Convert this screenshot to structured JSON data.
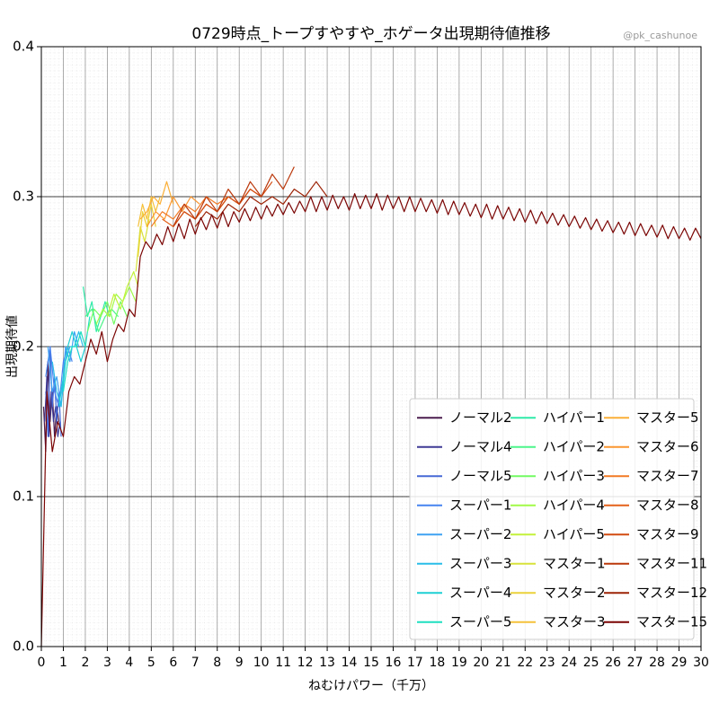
{
  "chart_data": {
    "type": "line",
    "title": "0729時点_トープすやすや_ホゲータ出現期待値推移",
    "watermark": "@pk_cashunoe",
    "xlabel": "ねむけパワー（千万）",
    "ylabel": "出現期待値",
    "xlim": [
      0,
      30
    ],
    "ylim": [
      0,
      0.4
    ],
    "xticks": [
      0,
      1,
      2,
      3,
      4,
      5,
      6,
      7,
      8,
      9,
      10,
      11,
      12,
      13,
      14,
      15,
      16,
      17,
      18,
      19,
      20,
      21,
      22,
      23,
      24,
      25,
      26,
      27,
      28,
      29,
      30
    ],
    "yticks": [
      {
        "value": 0,
        "label": "0.0"
      },
      0.1,
      0.2,
      0.3,
      0.4
    ],
    "grid": true,
    "legend": "lower right",
    "series": [
      {
        "name": "ノーマル2",
        "color": "#4b1d4f",
        "x": [
          0.1,
          0.2,
          0.3,
          0.4,
          0.5,
          0.6,
          0.7,
          0.8
        ],
        "values": [
          0.16,
          0.13,
          0.19,
          0.15,
          0.17,
          0.14,
          0.16,
          0.15
        ]
      },
      {
        "name": "ノーマル4",
        "color": "#3f3a95",
        "x": [
          0.15,
          0.25,
          0.35,
          0.45,
          0.55,
          0.65,
          0.75,
          0.85
        ],
        "values": [
          0.15,
          0.18,
          0.14,
          0.17,
          0.15,
          0.16,
          0.14,
          0.15
        ]
      },
      {
        "name": "ノーマル5",
        "color": "#4668d6",
        "x": [
          0.2,
          0.3,
          0.4,
          0.5,
          0.6,
          0.7,
          0.8,
          0.9
        ],
        "values": [
          0.17,
          0.14,
          0.2,
          0.16,
          0.18,
          0.15,
          0.17,
          0.14
        ]
      },
      {
        "name": "スーパー1",
        "color": "#4684f0",
        "x": [
          0.2,
          0.4,
          0.6,
          0.8,
          1.0,
          1.2,
          1.4
        ],
        "values": [
          0.18,
          0.2,
          0.17,
          0.16,
          0.19,
          0.2,
          0.19
        ]
      },
      {
        "name": "スーパー2",
        "color": "#3ea2f2",
        "x": [
          0.3,
          0.5,
          0.7,
          0.9,
          1.1,
          1.3,
          1.5,
          1.7
        ],
        "values": [
          0.2,
          0.17,
          0.18,
          0.16,
          0.2,
          0.19,
          0.21,
          0.2
        ]
      },
      {
        "name": "スーパー3",
        "color": "#29bde8",
        "x": [
          0.5,
          0.7,
          0.9,
          1.1,
          1.3,
          1.5,
          1.7,
          1.9
        ],
        "values": [
          0.19,
          0.17,
          0.16,
          0.19,
          0.2,
          0.2,
          0.21,
          0.2
        ]
      },
      {
        "name": "スーパー4",
        "color": "#1dcfd4",
        "x": [
          0.8,
          1.0,
          1.2,
          1.4,
          1.6,
          1.8,
          2.0
        ],
        "values": [
          0.16,
          0.18,
          0.2,
          0.21,
          0.2,
          0.19,
          0.2
        ]
      },
      {
        "name": "スーパー5",
        "color": "#1ddfc0",
        "x": [
          1.0,
          1.2,
          1.4,
          1.6,
          1.8,
          2.0,
          2.2
        ],
        "values": [
          0.17,
          0.19,
          0.2,
          0.2,
          0.21,
          0.2,
          0.22
        ]
      },
      {
        "name": "ハイパー1",
        "color": "#2eeaa8",
        "x": [
          1.9,
          2.1,
          2.3,
          2.5,
          2.7,
          2.9,
          3.1
        ],
        "values": [
          0.24,
          0.22,
          0.23,
          0.21,
          0.22,
          0.23,
          0.22
        ]
      },
      {
        "name": "ハイパー2",
        "color": "#4cf68a",
        "x": [
          2.0,
          2.3,
          2.6,
          2.9,
          3.2,
          3.5
        ],
        "values": [
          0.22,
          0.225,
          0.21,
          0.22,
          0.225,
          0.22
        ]
      },
      {
        "name": "ハイパー3",
        "color": "#72fb62",
        "x": [
          2.1,
          2.4,
          2.7,
          3.0,
          3.3,
          3.6,
          3.9
        ],
        "values": [
          0.21,
          0.225,
          0.22,
          0.23,
          0.215,
          0.23,
          0.22
        ]
      },
      {
        "name": "ハイパー4",
        "color": "#a2fa47",
        "x": [
          2.5,
          2.8,
          3.1,
          3.4,
          3.7,
          4.0,
          4.3
        ],
        "values": [
          0.215,
          0.225,
          0.22,
          0.235,
          0.23,
          0.24,
          0.23
        ]
      },
      {
        "name": "ハイパー5",
        "color": "#c3f13a",
        "x": [
          3.0,
          3.3,
          3.6,
          3.9,
          4.2,
          4.4
        ],
        "values": [
          0.22,
          0.235,
          0.225,
          0.24,
          0.25,
          0.24
        ]
      },
      {
        "name": "マスター1",
        "color": "#d8e23a",
        "x": [
          4.3,
          4.5,
          4.7,
          4.9
        ],
        "values": [
          0.25,
          0.28,
          0.27,
          0.285
        ]
      },
      {
        "name": "マスター2",
        "color": "#ebd23a",
        "x": [
          4.4,
          4.6,
          4.8,
          5.0,
          5.2
        ],
        "values": [
          0.26,
          0.29,
          0.28,
          0.295,
          0.28
        ]
      },
      {
        "name": "マスター3",
        "color": "#f5c13a",
        "x": [
          4.4,
          4.6,
          4.8,
          5.0,
          5.2,
          5.4
        ],
        "values": [
          0.28,
          0.295,
          0.285,
          0.3,
          0.29,
          0.3
        ]
      },
      {
        "name": "マスター5",
        "color": "#fbaf37",
        "x": [
          4.5,
          4.8,
          5.1,
          5.4,
          5.7,
          6.0
        ],
        "values": [
          0.285,
          0.29,
          0.3,
          0.295,
          0.31,
          0.295
        ]
      },
      {
        "name": "マスター6",
        "color": "#fa9630",
        "x": [
          4.8,
          5.2,
          5.6,
          6.0,
          6.4,
          6.8,
          7.2
        ],
        "values": [
          0.28,
          0.29,
          0.285,
          0.3,
          0.29,
          0.3,
          0.295
        ]
      },
      {
        "name": "マスター7",
        "color": "#f27a24",
        "x": [
          5,
          5.5,
          6,
          6.5,
          7,
          7.5,
          8,
          8.5
        ],
        "values": [
          0.28,
          0.29,
          0.285,
          0.295,
          0.29,
          0.3,
          0.295,
          0.3
        ]
      },
      {
        "name": "マスター8",
        "color": "#e4611a",
        "x": [
          5.5,
          6,
          6.5,
          7,
          7.5,
          8,
          8.5,
          9,
          9.5,
          10
        ],
        "values": [
          0.285,
          0.28,
          0.29,
          0.285,
          0.295,
          0.29,
          0.3,
          0.295,
          0.305,
          0.3
        ]
      },
      {
        "name": "マスター9",
        "color": "#d24b10",
        "x": [
          6,
          6.5,
          7,
          7.5,
          8,
          8.5,
          9,
          9.5,
          10,
          10.5
        ],
        "values": [
          0.28,
          0.29,
          0.285,
          0.295,
          0.29,
          0.3,
          0.295,
          0.305,
          0.3,
          0.31
        ]
      },
      {
        "name": "マスター11",
        "color": "#bb380b",
        "x": [
          6,
          6.5,
          7,
          7.5,
          8,
          8.5,
          9,
          9.5,
          10,
          10.5,
          11,
          11.5
        ],
        "values": [
          0.28,
          0.295,
          0.285,
          0.3,
          0.29,
          0.305,
          0.295,
          0.31,
          0.3,
          0.315,
          0.305,
          0.32
        ]
      },
      {
        "name": "マスター12",
        "color": "#9c2306",
        "x": [
          7,
          7.5,
          8,
          8.5,
          9,
          9.5,
          10,
          10.5,
          11,
          11.5,
          12,
          12.5,
          13
        ],
        "values": [
          0.28,
          0.29,
          0.285,
          0.295,
          0.29,
          0.3,
          0.295,
          0.3,
          0.295,
          0.305,
          0.3,
          0.31,
          0.3
        ]
      },
      {
        "name": "マスター15",
        "color": "#7a0403",
        "x": [
          0,
          0.25,
          0.5,
          0.75,
          1,
          1.25,
          1.5,
          1.75,
          2,
          2.25,
          2.5,
          2.75,
          3,
          3.25,
          3.5,
          3.75,
          4,
          4.25,
          4.5,
          4.75,
          5,
          5.25,
          5.5,
          5.75,
          6,
          6.25,
          6.5,
          6.75,
          7,
          7.25,
          7.5,
          7.75,
          8,
          8.25,
          8.5,
          8.75,
          9,
          9.25,
          9.5,
          9.75,
          10,
          10.25,
          10.5,
          10.75,
          11,
          11.25,
          11.5,
          11.75,
          12,
          12.25,
          12.5,
          12.75,
          13,
          13.25,
          13.5,
          13.75,
          14,
          14.25,
          14.5,
          14.75,
          15,
          15.25,
          15.5,
          15.75,
          16,
          16.25,
          16.5,
          16.75,
          17,
          17.25,
          17.5,
          17.75,
          18,
          18.25,
          18.5,
          18.75,
          19,
          19.25,
          19.5,
          19.75,
          20,
          20.25,
          20.5,
          20.75,
          21,
          21.25,
          21.5,
          21.75,
          22,
          22.25,
          22.5,
          22.75,
          23,
          23.25,
          23.5,
          23.75,
          24,
          24.25,
          24.5,
          24.75,
          25,
          25.25,
          25.5,
          25.75,
          26,
          26.25,
          26.5,
          26.75,
          27,
          27.25,
          27.5,
          27.75,
          28,
          28.25,
          28.5,
          28.75,
          29,
          29.25,
          29.5,
          29.75,
          30
        ],
        "values": [
          0,
          0.17,
          0.13,
          0.15,
          0.14,
          0.17,
          0.18,
          0.175,
          0.19,
          0.205,
          0.195,
          0.21,
          0.19,
          0.205,
          0.215,
          0.21,
          0.225,
          0.22,
          0.26,
          0.27,
          0.265,
          0.275,
          0.268,
          0.28,
          0.27,
          0.282,
          0.272,
          0.285,
          0.275,
          0.286,
          0.278,
          0.288,
          0.279,
          0.29,
          0.28,
          0.29,
          0.283,
          0.292,
          0.284,
          0.293,
          0.285,
          0.294,
          0.287,
          0.295,
          0.288,
          0.296,
          0.289,
          0.297,
          0.29,
          0.3,
          0.29,
          0.3,
          0.291,
          0.301,
          0.292,
          0.3,
          0.291,
          0.302,
          0.292,
          0.301,
          0.292,
          0.302,
          0.291,
          0.301,
          0.292,
          0.3,
          0.29,
          0.3,
          0.29,
          0.299,
          0.29,
          0.298,
          0.289,
          0.298,
          0.288,
          0.297,
          0.288,
          0.296,
          0.287,
          0.295,
          0.286,
          0.295,
          0.285,
          0.294,
          0.285,
          0.293,
          0.284,
          0.292,
          0.283,
          0.291,
          0.282,
          0.29,
          0.282,
          0.289,
          0.281,
          0.288,
          0.28,
          0.287,
          0.279,
          0.286,
          0.278,
          0.285,
          0.277,
          0.284,
          0.276,
          0.283,
          0.275,
          0.283,
          0.274,
          0.282,
          0.274,
          0.281,
          0.273,
          0.281,
          0.272,
          0.28,
          0.272,
          0.279,
          0.271,
          0.279,
          0.272
        ]
      }
    ]
  }
}
